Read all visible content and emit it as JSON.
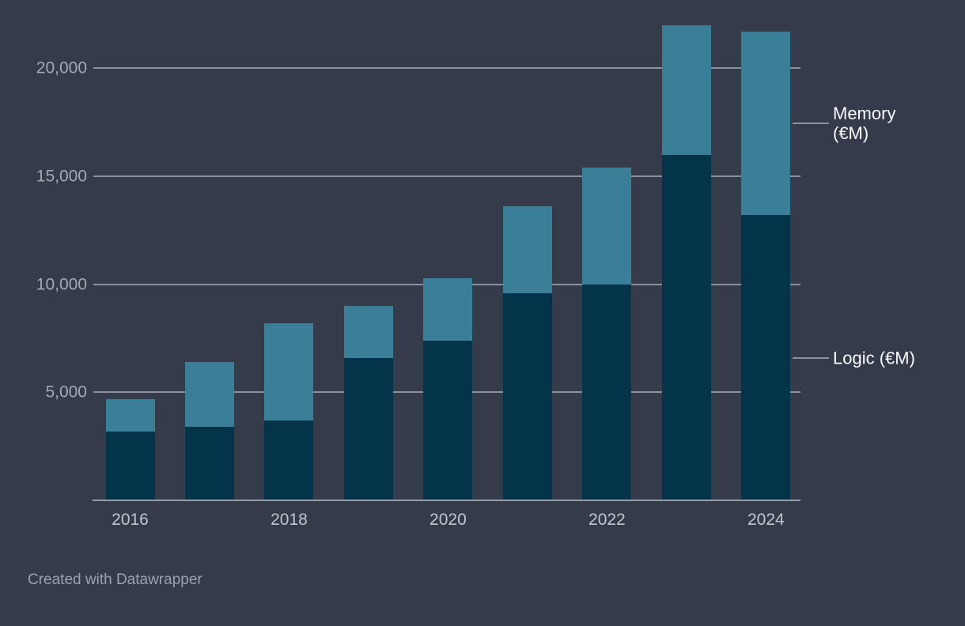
{
  "chart_data": {
    "type": "bar",
    "variant": "stacked-column",
    "title": "",
    "categories": [
      "2016",
      "2017",
      "2018",
      "2019",
      "2020",
      "2021",
      "2022",
      "2023",
      "2024"
    ],
    "series": [
      {
        "name": "Logic (€M)",
        "label_lines": [
          "Logic (€M)"
        ],
        "color": "#033449",
        "values": [
          3200,
          3400,
          3700,
          6600,
          7400,
          9600,
          10000,
          16000,
          13200
        ]
      },
      {
        "name": "Memory (€M)",
        "label_lines": [
          "Memory",
          "(€M)"
        ],
        "color": "#3a7e98",
        "values": [
          1500,
          3000,
          4500,
          2400,
          2900,
          4000,
          5400,
          6000,
          8500
        ]
      }
    ],
    "stack_order": [
      "Logic (€M)",
      "Memory (€M)"
    ],
    "ylim": [
      0,
      22000
    ],
    "y_ticks": [
      {
        "value": 5000,
        "label": "5,000"
      },
      {
        "value": 10000,
        "label": "10,000"
      },
      {
        "value": 15000,
        "label": "15,000"
      },
      {
        "value": 20000,
        "label": "20,000"
      }
    ],
    "x_tick_labels": [
      "2016",
      "2018",
      "2020",
      "2022",
      "2024"
    ],
    "grid": true,
    "legend_position": "right-direct-labels"
  },
  "footer": {
    "credit": "Created with Datawrapper"
  },
  "colors": {
    "background": "#343c4c",
    "gridline": "#8b919b",
    "axis_line": "#989ea7",
    "y_tick_text": "#a3a9b3",
    "x_tick_text": "#c2c6cc",
    "legend_text": "#f7f9fa",
    "footer_text": "#9aa2ac"
  }
}
